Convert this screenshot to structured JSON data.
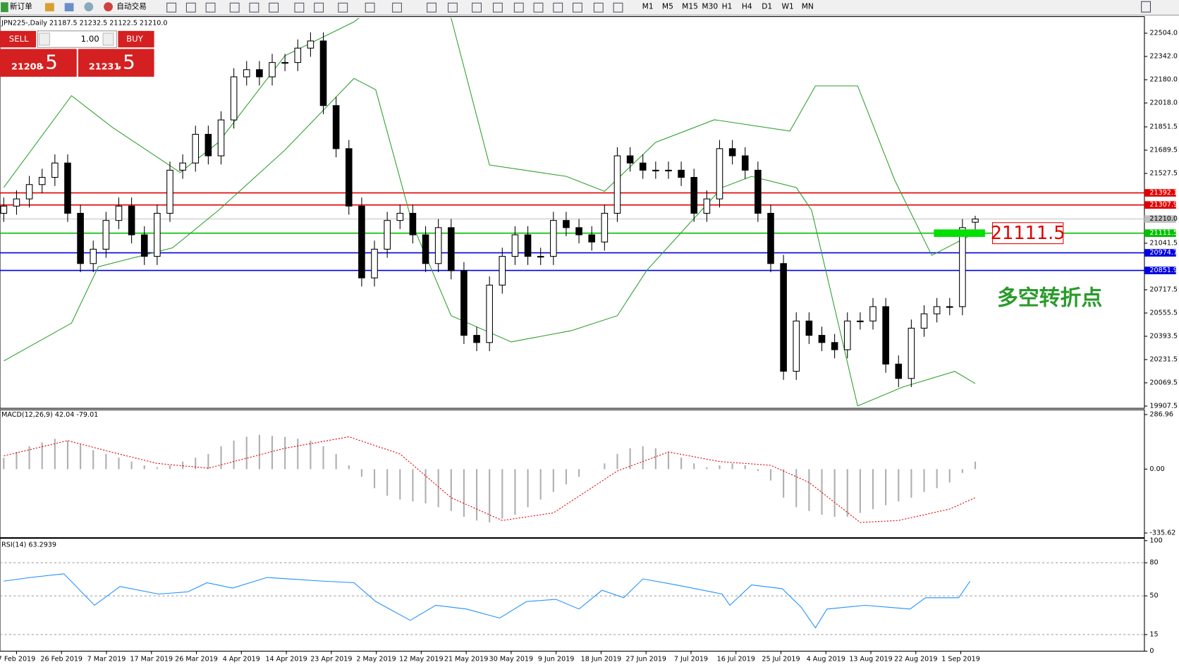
{
  "toolbar": {
    "new_order": "新订单",
    "auto_trade": "自动交易",
    "periods": [
      "M1",
      "M5",
      "M15",
      "M30",
      "H1",
      "H4",
      "D1",
      "W1",
      "MN"
    ]
  },
  "trade_panel": {
    "sell": "SELL",
    "lots": "1.00",
    "buy": "BUY",
    "sell_big": "21208",
    "sell_small": ".5",
    "buy_big": "21231",
    "buy_small": ".5"
  },
  "chart_data": {
    "type": "candlestick",
    "title": "JPN225-,Daily  21187.5 21232.5 21122.5 21210.0",
    "x_labels": [
      "7 Feb 2019",
      "26 Feb 2019",
      "7 Mar 2019",
      "17 Mar 2019",
      "26 Mar 2019",
      "4 Apr 2019",
      "14 Apr 2019",
      "23 Apr 2019",
      "2 May 2019",
      "12 May 2019",
      "21 May 2019",
      "30 May 2019",
      "9 Jun 2019",
      "18 Jun 2019",
      "27 Jun 2019",
      "7 Jul 2019",
      "16 Jul 2019",
      "25 Jul 2019",
      "4 Aug 2019",
      "13 Aug 2019",
      "22 Aug 2019",
      "1 Sep 2019"
    ],
    "open": [
      21250,
      21300,
      21350,
      21450,
      21500,
      21600,
      21250,
      20900,
      21000,
      21200,
      21300,
      21100,
      20950,
      21250,
      21550,
      21600,
      21800,
      21650,
      21900,
      22200,
      22250,
      22200,
      22300,
      22300,
      22400,
      22450,
      22000,
      21700,
      21300,
      20800,
      21000,
      21200,
      21250,
      21100,
      20900,
      21150,
      20850,
      20400,
      20350,
      20750,
      20950,
      21100,
      20950,
      20950,
      21200,
      21150,
      21100,
      21050,
      21250,
      21650,
      21600,
      21550,
      21550,
      21550,
      21500,
      21250,
      21350,
      21700,
      21650,
      21550,
      21250,
      20900,
      20150,
      20500,
      20400,
      20350,
      20300,
      20500,
      20500,
      20600,
      20200,
      20100,
      20450,
      20550,
      20600,
      20600,
      21187.5
    ],
    "high": [
      21360,
      21410,
      21510,
      21560,
      21660,
      21660,
      21310,
      21060,
      21260,
      21360,
      21360,
      21160,
      21310,
      21610,
      21660,
      21860,
      21860,
      21960,
      22260,
      22310,
      22310,
      22360,
      22360,
      22460,
      22510,
      22510,
      22060,
      21760,
      21360,
      21060,
      21260,
      21310,
      21310,
      21160,
      21210,
      21210,
      20910,
      20460,
      20810,
      21010,
      21160,
      21160,
      21010,
      21260,
      21260,
      21210,
      21160,
      21310,
      21710,
      21710,
      21660,
      21610,
      21610,
      21610,
      21560,
      21410,
      21760,
      21760,
      21710,
      21610,
      21310,
      20960,
      20560,
      20560,
      20460,
      20410,
      20560,
      20560,
      20660,
      20660,
      20260,
      20510,
      20610,
      20660,
      20660,
      21210,
      21232.5
    ],
    "low": [
      21190,
      21240,
      21290,
      21390,
      21440,
      21190,
      20840,
      20840,
      20940,
      21140,
      21040,
      20890,
      20890,
      21190,
      21490,
      21540,
      21590,
      21590,
      21840,
      22140,
      22140,
      22140,
      22240,
      22240,
      22340,
      21940,
      21640,
      21240,
      20740,
      20740,
      20940,
      21140,
      21040,
      20840,
      20840,
      20790,
      20340,
      20290,
      20290,
      20690,
      20890,
      20890,
      20890,
      20890,
      21090,
      21040,
      20990,
      20990,
      21190,
      21540,
      21490,
      21490,
      21490,
      21440,
      21190,
      21190,
      21290,
      21590,
      21490,
      21190,
      20840,
      20090,
      20090,
      20340,
      20290,
      20240,
      20240,
      20440,
      20440,
      20140,
      20040,
      20040,
      20390,
      20490,
      20540,
      20540,
      21122.5
    ],
    "close": [
      21300,
      21350,
      21450,
      21500,
      21600,
      21250,
      20900,
      21000,
      21200,
      21300,
      21100,
      20950,
      21250,
      21550,
      21600,
      21800,
      21650,
      21900,
      22200,
      22250,
      22200,
      22300,
      22300,
      22400,
      22450,
      22000,
      21700,
      21300,
      20800,
      21000,
      21200,
      21250,
      21100,
      20900,
      21150,
      20850,
      20400,
      20350,
      20750,
      20950,
      21100,
      20950,
      20950,
      21200,
      21150,
      21100,
      21050,
      21250,
      21650,
      21600,
      21550,
      21550,
      21550,
      21500,
      21250,
      21350,
      21700,
      21650,
      21550,
      21250,
      20900,
      20150,
      20500,
      20400,
      20350,
      20300,
      20500,
      20500,
      20600,
      20200,
      20100,
      20450,
      20550,
      20600,
      20600,
      21150,
      21210
    ],
    "bands": [
      {
        "x": [
          0,
          5.3,
          8.5,
          13.8,
          16.8,
          22,
          27.4,
          29.7,
          35,
          38,
          44,
          47,
          51,
          55.6,
          61.5,
          63.5,
          66.8,
          69.7,
          72.6,
          76
        ],
        "values": [
          21430,
          22069,
          21848,
          21534,
          21744,
          22347,
          22583,
          22740,
          22609,
          21586,
          21507,
          21403,
          21744,
          21901,
          21822,
          22137,
          22137,
          21481,
          20957,
          21114
        ]
      },
      {
        "x": [
          0,
          5.3,
          7.4,
          13.2,
          16.8,
          22,
          27.4,
          29.1,
          32,
          35,
          39.7,
          44.4,
          48,
          50.3,
          56.2,
          58.5,
          62,
          63.2,
          66.8,
          70.3,
          74.4,
          76
        ],
        "values": [
          20222,
          20485,
          20878,
          21009,
          21271,
          21691,
          22189,
          22110,
          21167,
          20537,
          20354,
          20433,
          20537,
          20852,
          21429,
          21507,
          21429,
          21271,
          19908,
          20039,
          20149,
          20065
        ]
      }
    ],
    "band_color": "#2ca02c",
    "ylim": [
      19892,
      22609
    ],
    "yticks": [
      {
        "value": 22504,
        "label": "22504.0"
      },
      {
        "value": 22342,
        "label": "22342.0"
      },
      {
        "value": 22180,
        "label": "22180.0"
      },
      {
        "value": 22018,
        "label": "22018.0"
      },
      {
        "value": 21851.5,
        "label": "21851.5"
      },
      {
        "value": 21689.5,
        "label": "21689.5"
      },
      {
        "value": 21527.5,
        "label": "21527.5"
      },
      {
        "value": 21041.5,
        "label": "21041.5"
      },
      {
        "value": 20717.5,
        "label": "20717.5"
      },
      {
        "value": 20555.5,
        "label": "20555.5"
      },
      {
        "value": 20393.5,
        "label": "20393.5"
      },
      {
        "value": 20231.5,
        "label": "20231.5"
      },
      {
        "value": 20069.5,
        "label": "20069.5"
      },
      {
        "value": 19907.5,
        "label": "19907.5"
      }
    ],
    "levels": [
      {
        "value": 21392.1,
        "label": "21392.1",
        "color": "#e00000"
      },
      {
        "value": 21307.9,
        "label": "21307.9",
        "color": "#e00000"
      },
      {
        "value": 21210,
        "label": "21210.0",
        "color": "#c0c0c0"
      },
      {
        "value": 21111.5,
        "label": "21111.5",
        "color": "#00c000"
      },
      {
        "value": 20974.7,
        "label": "20974.7",
        "color": "#0000e0"
      },
      {
        "value": 20851.9,
        "label": "20851.9",
        "color": "#0000e0"
      }
    ],
    "annotation_price": "21111.5",
    "annotation_text": "多空转折点",
    "macd": {
      "label": "MACD(12,26,9) 42.04 -79.01",
      "ylim": [
        -360,
        300
      ],
      "yticks": [
        {
          "value": 286.96,
          "label": "286.96"
        },
        {
          "value": 0,
          "label": "0.00"
        },
        {
          "value": -335.62,
          "label": "-335.62"
        }
      ],
      "histogram": [
        60,
        90,
        120,
        140,
        160,
        150,
        130,
        100,
        80,
        60,
        40,
        20,
        10,
        20,
        40,
        60,
        80,
        120,
        150,
        170,
        180,
        175,
        170,
        160,
        150,
        120,
        80,
        20,
        -40,
        -100,
        -140,
        -160,
        -170,
        -180,
        -200,
        -220,
        -250,
        -270,
        -280,
        -260,
        -240,
        -200,
        -160,
        -120,
        -80,
        -40,
        0,
        30,
        80,
        110,
        120,
        110,
        90,
        60,
        30,
        10,
        20,
        30,
        20,
        -10,
        -60,
        -150,
        -200,
        -220,
        -240,
        -250,
        -250,
        -230,
        -210,
        -190,
        -170,
        -150,
        -120,
        -100,
        -70,
        -20,
        40
      ],
      "signal_x": [
        0,
        5,
        9,
        12,
        16,
        22,
        27,
        31,
        35,
        39,
        43,
        48,
        52,
        56,
        60,
        63,
        67,
        70,
        74,
        76
      ],
      "signal": [
        70,
        150,
        80,
        30,
        5,
        110,
        170,
        80,
        -150,
        -270,
        -230,
        -10,
        90,
        40,
        20,
        -70,
        -280,
        -270,
        -210,
        -150
      ]
    },
    "rsi": {
      "label": "RSI(14) 63.2939",
      "ylim": [
        0,
        100
      ],
      "yticks": [
        100,
        80,
        50,
        15,
        0
      ],
      "x": [
        0,
        2.1,
        4.7,
        7.1,
        9.1,
        12.1,
        14.4,
        15.9,
        17.9,
        20.6,
        22.4,
        25,
        27.4,
        29.1,
        31.8,
        33.8,
        36.2,
        38.8,
        40.9,
        43.2,
        45,
        46.8,
        48.5,
        50,
        52.6,
        56.2,
        56.8,
        58.5,
        60.9,
        62.4,
        63.5,
        64.4,
        67.4,
        70.9,
        72.1,
        74.7,
        75.6
      ],
      "values": [
        63.3,
        66.7,
        70,
        41.5,
        58.5,
        51.7,
        53.7,
        61.9,
        57.1,
        66.7,
        65.3,
        63.3,
        61.9,
        44.9,
        27.9,
        41.5,
        38.1,
        29.9,
        44.9,
        46.9,
        38.1,
        55.1,
        48.3,
        65.3,
        59.9,
        51.7,
        41.5,
        59.9,
        56.5,
        39.5,
        21.1,
        38.1,
        41.5,
        38.1,
        48.3,
        48.3,
        63.3
      ]
    }
  }
}
